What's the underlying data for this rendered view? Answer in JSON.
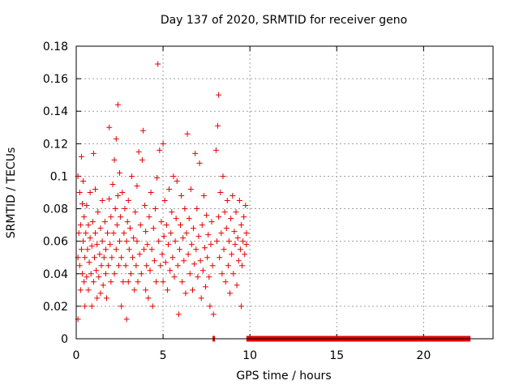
{
  "chart_data": {
    "type": "scatter",
    "title": "Day 137 of 2020, SRMTID for receiver geno",
    "xlabel": "GPS time / hours",
    "ylabel": "SRMTID / TECUs",
    "xlim": [
      0,
      24
    ],
    "ylim": [
      0,
      0.18
    ],
    "xticks": [
      0,
      5,
      10,
      15,
      20
    ],
    "yticks": [
      0,
      0.02,
      0.04,
      0.06,
      0.08,
      0.1,
      0.12,
      0.14,
      0.16,
      0.18
    ],
    "ytick_labels": [
      "0",
      "0.02",
      "0.04",
      "0.06",
      "0.08",
      "0.1",
      "0.12",
      "0.14",
      "0.16",
      "0.18"
    ],
    "grid": true,
    "marker": "plus",
    "series": [
      {
        "name": "SRMTID",
        "color": "#e60000",
        "points": [
          [
            0.1,
            0.012
          ],
          [
            0.1,
            0.05
          ],
          [
            0.1,
            0.1
          ],
          [
            0.15,
            0.065
          ],
          [
            0.2,
            0.045
          ],
          [
            0.2,
            0.09
          ],
          [
            0.25,
            0.03
          ],
          [
            0.25,
            0.07
          ],
          [
            0.3,
            0.055
          ],
          [
            0.3,
            0.112
          ],
          [
            0.35,
            0.04
          ],
          [
            0.35,
            0.083
          ],
          [
            0.4,
            0.06
          ],
          [
            0.4,
            0.097
          ],
          [
            0.45,
            0.035
          ],
          [
            0.45,
            0.075
          ],
          [
            0.5,
            0.05
          ],
          [
            0.5,
            0.02
          ],
          [
            0.55,
            0.065
          ],
          [
            0.6,
            0.038
          ],
          [
            0.6,
            0.082
          ],
          [
            0.65,
            0.055
          ],
          [
            0.7,
            0.03
          ],
          [
            0.7,
            0.07
          ],
          [
            0.75,
            0.047
          ],
          [
            0.8,
            0.062
          ],
          [
            0.8,
            0.09
          ],
          [
            0.85,
            0.04
          ],
          [
            0.9,
            0.057
          ],
          [
            0.9,
            0.02
          ],
          [
            0.95,
            0.072
          ],
          [
            1.0,
            0.035
          ],
          [
            1.0,
            0.114
          ],
          [
            1.05,
            0.05
          ],
          [
            1.1,
            0.065
          ],
          [
            1.1,
            0.092
          ],
          [
            1.15,
            0.042
          ],
          [
            1.2,
            0.025
          ],
          [
            1.2,
            0.058
          ],
          [
            1.25,
            0.078
          ],
          [
            1.3,
            0.038
          ],
          [
            1.35,
            0.052
          ],
          [
            1.4,
            0.068
          ],
          [
            1.4,
            0.028
          ],
          [
            1.45,
            0.045
          ],
          [
            1.5,
            0.06
          ],
          [
            1.5,
            0.085
          ],
          [
            1.55,
            0.033
          ],
          [
            1.6,
            0.05
          ],
          [
            1.65,
            0.072
          ],
          [
            1.7,
            0.04
          ],
          [
            1.7,
            0.055
          ],
          [
            1.75,
            0.025
          ],
          [
            1.8,
            0.065
          ],
          [
            1.85,
            0.045
          ],
          [
            1.9,
            0.086
          ],
          [
            1.9,
            0.13
          ],
          [
            1.95,
            0.058
          ],
          [
            2.0,
            0.035
          ],
          [
            2.0,
            0.075
          ],
          [
            2.05,
            0.05
          ],
          [
            2.1,
            0.095
          ],
          [
            2.15,
            0.065
          ],
          [
            2.2,
            0.04
          ],
          [
            2.2,
            0.11
          ],
          [
            2.25,
            0.08
          ],
          [
            2.3,
            0.055
          ],
          [
            2.3,
            0.123
          ],
          [
            2.35,
            0.07
          ],
          [
            2.4,
            0.144
          ],
          [
            2.4,
            0.088
          ],
          [
            2.45,
            0.045
          ],
          [
            2.5,
            0.102
          ],
          [
            2.5,
            0.06
          ],
          [
            2.55,
            0.075
          ],
          [
            2.6,
            0.02
          ],
          [
            2.6,
            0.05
          ],
          [
            2.65,
            0.09
          ],
          [
            2.7,
            0.035
          ],
          [
            2.75,
            0.065
          ],
          [
            2.8,
            0.08
          ],
          [
            2.85,
            0.045
          ],
          [
            2.9,
            0.06
          ],
          [
            2.9,
            0.012
          ],
          [
            2.95,
            0.072
          ],
          [
            3.0,
            0.035
          ],
          [
            3.0,
            0.085
          ],
          [
            3.05,
            0.055
          ],
          [
            3.1,
            0.068
          ],
          [
            3.15,
            0.04
          ],
          [
            3.2,
            0.1
          ],
          [
            3.25,
            0.05
          ],
          [
            3.3,
            0.062
          ],
          [
            3.35,
            0.03
          ],
          [
            3.4,
            0.078
          ],
          [
            3.45,
            0.045
          ],
          [
            3.5,
            0.06
          ],
          [
            3.5,
            0.094
          ],
          [
            3.55,
            0.035
          ],
          [
            3.6,
            0.115
          ],
          [
            3.65,
            0.052
          ],
          [
            3.7,
            0.07
          ],
          [
            3.75,
            0.04
          ],
          [
            3.8,
            0.11
          ],
          [
            3.85,
            0.128
          ],
          [
            3.9,
            0.055
          ],
          [
            3.95,
            0.082
          ],
          [
            4.0,
            0.03
          ],
          [
            4.0,
            0.066
          ],
          [
            4.05,
            0.045
          ],
          [
            4.1,
            0.058
          ],
          [
            4.15,
            0.025
          ],
          [
            4.2,
            0.075
          ],
          [
            4.25,
            0.042
          ],
          [
            4.3,
            0.09
          ],
          [
            4.35,
            0.055
          ],
          [
            4.4,
            0.02
          ],
          [
            4.45,
            0.068
          ],
          [
            4.5,
            0.048
          ],
          [
            4.55,
            0.08
          ],
          [
            4.6,
            0.035
          ],
          [
            4.65,
            0.099
          ],
          [
            4.7,
            0.169
          ],
          [
            4.75,
            0.06
          ],
          [
            4.8,
            0.116
          ],
          [
            4.85,
            0.045
          ],
          [
            4.9,
            0.072
          ],
          [
            4.95,
            0.052
          ],
          [
            5.0,
            0.12
          ],
          [
            5.0,
            0.035
          ],
          [
            5.05,
            0.063
          ],
          [
            5.1,
            0.085
          ],
          [
            5.15,
            0.047
          ],
          [
            5.2,
            0.07
          ],
          [
            5.25,
            0.03
          ],
          [
            5.3,
            0.058
          ],
          [
            5.35,
            0.092
          ],
          [
            5.4,
            0.042
          ],
          [
            5.45,
            0.065
          ],
          [
            5.5,
            0.078
          ],
          [
            5.55,
            0.05
          ],
          [
            5.6,
            0.1
          ],
          [
            5.65,
            0.038
          ],
          [
            5.7,
            0.06
          ],
          [
            5.75,
            0.074
          ],
          [
            5.8,
            0.097
          ],
          [
            5.85,
            0.045
          ],
          [
            5.9,
            0.015
          ],
          [
            5.95,
            0.055
          ],
          [
            6.0,
            0.07
          ],
          [
            6.05,
            0.088
          ],
          [
            6.1,
            0.035
          ],
          [
            6.15,
            0.062
          ],
          [
            6.2,
            0.048
          ],
          [
            6.25,
            0.08
          ],
          [
            6.3,
            0.028
          ],
          [
            6.35,
            0.065
          ],
          [
            6.4,
            0.126
          ],
          [
            6.45,
            0.052
          ],
          [
            6.5,
            0.074
          ],
          [
            6.55,
            0.04
          ],
          [
            6.6,
            0.092
          ],
          [
            6.65,
            0.058
          ],
          [
            6.7,
            0.03
          ],
          [
            6.75,
            0.068
          ],
          [
            6.8,
            0.046
          ],
          [
            6.85,
            0.114
          ],
          [
            6.9,
            0.055
          ],
          [
            6.95,
            0.08
          ],
          [
            7.0,
            0.038
          ],
          [
            7.05,
            0.063
          ],
          [
            7.1,
            0.108
          ],
          [
            7.15,
            0.048
          ],
          [
            7.2,
            0.025
          ],
          [
            7.25,
            0.07
          ],
          [
            7.3,
            0.042
          ],
          [
            7.35,
            0.088
          ],
          [
            7.4,
            0.056
          ],
          [
            7.45,
            0.032
          ],
          [
            7.5,
            0.076
          ],
          [
            7.55,
            0.05
          ],
          [
            7.6,
            0.064
          ],
          [
            7.65,
            0.038
          ],
          [
            7.7,
            0.02
          ],
          [
            7.75,
            0.058
          ],
          [
            7.8,
            0.072
          ],
          [
            7.85,
            0.045
          ],
          [
            7.9,
            0.015
          ],
          [
            8.05,
            0.116
          ],
          [
            8.15,
            0.131
          ],
          [
            8.2,
            0.15
          ],
          [
            8.1,
            0.06
          ],
          [
            8.2,
            0.075
          ],
          [
            8.25,
            0.05
          ],
          [
            8.3,
            0.09
          ],
          [
            8.35,
            0.065
          ],
          [
            8.4,
            0.04
          ],
          [
            8.45,
            0.1
          ],
          [
            8.5,
            0.055
          ],
          [
            8.55,
            0.078
          ],
          [
            8.6,
            0.035
          ],
          [
            8.65,
            0.068
          ],
          [
            8.7,
            0.085
          ],
          [
            8.75,
            0.045
          ],
          [
            8.8,
            0.06
          ],
          [
            8.85,
            0.028
          ],
          [
            8.9,
            0.074
          ],
          [
            8.95,
            0.052
          ],
          [
            9.0,
            0.088
          ],
          [
            9.05,
            0.04
          ],
          [
            9.1,
            0.066
          ],
          [
            9.15,
            0.058
          ],
          [
            9.2,
            0.078
          ],
          [
            9.25,
            0.033
          ],
          [
            9.3,
            0.062
          ],
          [
            9.35,
            0.048
          ],
          [
            9.4,
            0.085
          ],
          [
            9.45,
            0.055
          ],
          [
            9.5,
            0.02
          ],
          [
            9.5,
            0.07
          ],
          [
            9.55,
            0.045
          ],
          [
            9.6,
            0.06
          ],
          [
            9.65,
            0.075
          ],
          [
            9.7,
            0.052
          ],
          [
            9.75,
            0.082
          ],
          [
            9.8,
            0.065
          ],
          [
            9.8,
            0.058
          ]
        ],
        "zero_segments": [
          [
            7.85,
            7.95
          ],
          [
            9.8,
            22.7
          ]
        ]
      }
    ]
  }
}
